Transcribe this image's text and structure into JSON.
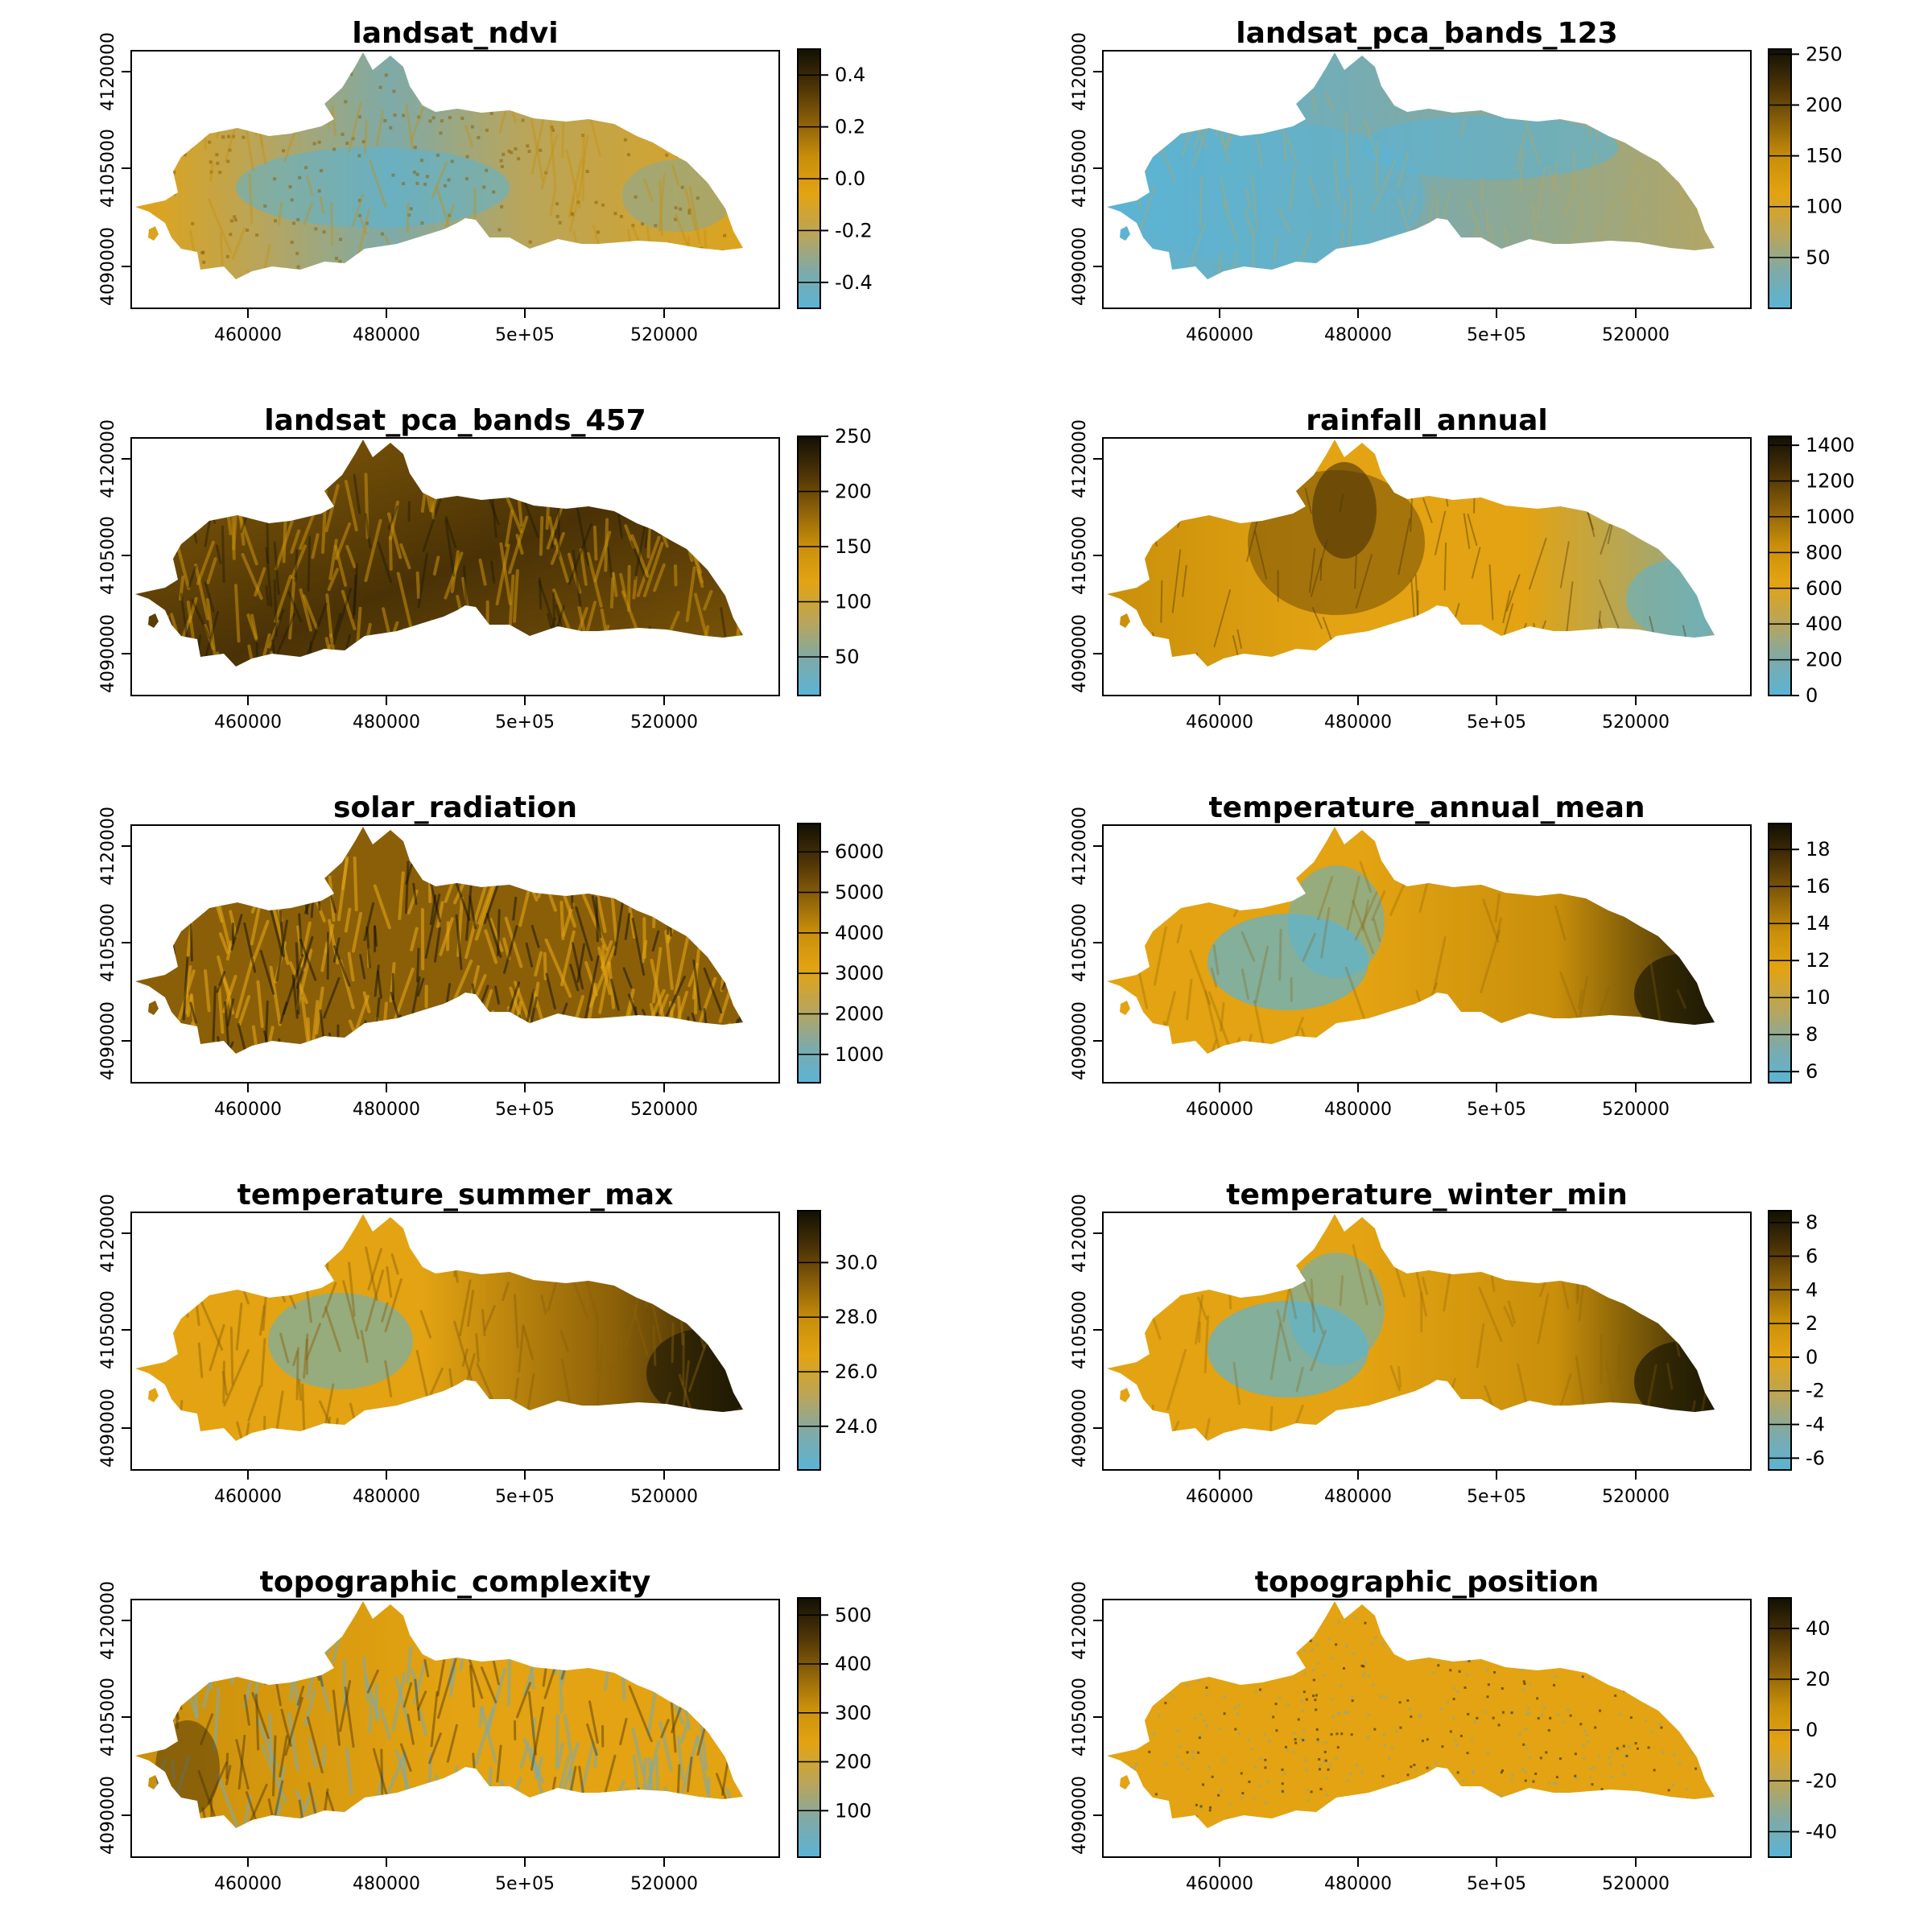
{
  "axes": {
    "x_ticks": [
      "460000",
      "480000",
      "5e+05",
      "520000"
    ],
    "y_ticks": [
      "4090000",
      "4105000",
      "4120000"
    ]
  },
  "colors": {
    "ramp": [
      "#5ab4d6",
      "#7eaaa8",
      "#b8a55c",
      "#e3a312",
      "#c98f0b",
      "#8a5f08",
      "#4a3206",
      "#111004"
    ]
  },
  "panels": [
    {
      "title": "landsat_ndvi",
      "legend_ticks": [
        "0.4",
        "0.2",
        "0.0",
        "-0.2",
        "-0.4"
      ],
      "tick_values": [
        0.4,
        0.2,
        0.0,
        -0.2,
        -0.4
      ],
      "legend_range": [
        -0.5,
        0.5
      ],
      "pattern": "ndvi"
    },
    {
      "title": "landsat_pca_bands_123",
      "legend_ticks": [
        "250",
        "200",
        "150",
        "100",
        "50"
      ],
      "tick_values": [
        250,
        200,
        150,
        100,
        50
      ],
      "legend_range": [
        0,
        255
      ],
      "pattern": "pca123"
    },
    {
      "title": "landsat_pca_bands_457",
      "legend_ticks": [
        "250",
        "200",
        "150",
        "100",
        "50"
      ],
      "tick_values": [
        250,
        200,
        150,
        100,
        50
      ],
      "legend_range": [
        15,
        250
      ],
      "pattern": "pca457"
    },
    {
      "title": "rainfall_annual",
      "legend_ticks": [
        "1400",
        "1200",
        "1000",
        "800",
        "600",
        "400",
        "200",
        "0"
      ],
      "tick_values": [
        1400,
        1200,
        1000,
        800,
        600,
        400,
        200,
        0
      ],
      "legend_range": [
        0,
        1450
      ],
      "pattern": "rain"
    },
    {
      "title": "solar_radiation",
      "legend_ticks": [
        "6000",
        "5000",
        "4000",
        "3000",
        "2000",
        "1000"
      ],
      "tick_values": [
        6000,
        5000,
        4000,
        3000,
        2000,
        1000
      ],
      "legend_range": [
        300,
        6700
      ],
      "pattern": "solar"
    },
    {
      "title": "temperature_annual_mean",
      "legend_ticks": [
        "18",
        "16",
        "14",
        "12",
        "10",
        "8",
        "6"
      ],
      "tick_values": [
        18,
        16,
        14,
        12,
        10,
        8,
        6
      ],
      "legend_range": [
        5.4,
        19.4
      ],
      "pattern": "tmean"
    },
    {
      "title": "temperature_summer_max",
      "legend_ticks": [
        "30.0",
        "28.0",
        "26.0",
        "24.0"
      ],
      "tick_values": [
        30,
        28,
        26,
        24
      ],
      "legend_range": [
        22.4,
        31.9
      ],
      "pattern": "tmax"
    },
    {
      "title": "temperature_winter_min",
      "legend_ticks": [
        "8",
        "6",
        "4",
        "2",
        "0",
        "-2",
        "-4",
        "-6"
      ],
      "tick_values": [
        8,
        6,
        4,
        2,
        0,
        -2,
        -4,
        -6
      ],
      "legend_range": [
        -6.7,
        8.7
      ],
      "pattern": "tmin"
    },
    {
      "title": "topographic_complexity",
      "legend_ticks": [
        "500",
        "400",
        "300",
        "200",
        "100"
      ],
      "tick_values": [
        500,
        400,
        300,
        200,
        100
      ],
      "legend_range": [
        5,
        535
      ],
      "pattern": "complex"
    },
    {
      "title": "topographic_position",
      "legend_ticks": [
        "40",
        "20",
        "0",
        "-20",
        "-40"
      ],
      "tick_values": [
        40,
        20,
        0,
        -20,
        -40
      ],
      "legend_range": [
        -50,
        52
      ],
      "pattern": "tpi"
    }
  ]
}
